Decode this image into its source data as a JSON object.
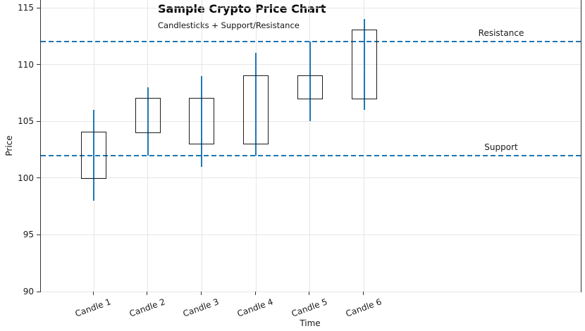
{
  "chart_data": {
    "type": "candlestick",
    "title": "Sample Crypto Price Chart",
    "subtitle": "Candlesticks + Support/Resistance",
    "xlabel": "Time",
    "ylabel": "Price",
    "categories": [
      "Candle 1",
      "Candle 2",
      "Candle 3",
      "Candle 4",
      "Candle 5",
      "Candle 6"
    ],
    "candles": [
      {
        "open": 100,
        "high": 106,
        "low": 98,
        "close": 104
      },
      {
        "open": 104,
        "high": 108,
        "low": 102,
        "close": 107
      },
      {
        "open": 103,
        "high": 109,
        "low": 101,
        "close": 107
      },
      {
        "open": 103,
        "high": 111,
        "low": 102,
        "close": 109
      },
      {
        "open": 107,
        "high": 112,
        "low": 105,
        "close": 109
      },
      {
        "open": 107,
        "high": 114,
        "low": 106,
        "close": 113
      }
    ],
    "yticks": [
      90,
      95,
      100,
      105,
      110,
      115
    ],
    "ylim": [
      90,
      115.7
    ],
    "levels": [
      {
        "label": "Resistance",
        "value": 112
      },
      {
        "label": "Support",
        "value": 102
      }
    ],
    "grid": true,
    "legend_position": "none",
    "colors": {
      "wick": "#1f77b4",
      "level": "#1f77b4",
      "body_edge": "#1c1c1c",
      "grid": "#e6e6e6",
      "spine": "#333333"
    }
  }
}
